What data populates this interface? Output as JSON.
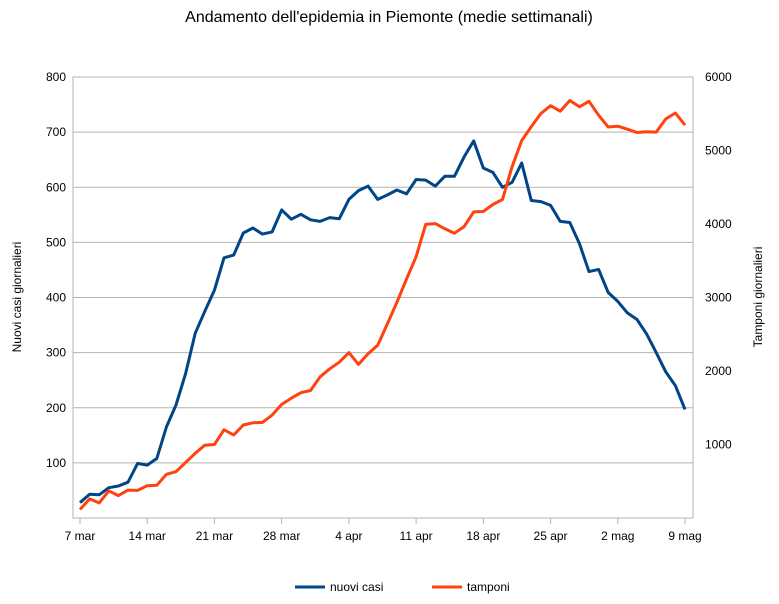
{
  "chart_data": {
    "type": "line",
    "title": "Andamento dell'epidemia in Piemonte (medie settimanali)",
    "ylabel": "Nuovi casi giornalieri",
    "y2label": "Tamponi giornalieri",
    "x_tick_labels": [
      "7 mar",
      "14 mar",
      "21 mar",
      "28 mar",
      "4 apr",
      "11 apr",
      "18 apr",
      "25 apr",
      "2 mag",
      "9 mag"
    ],
    "x_tick_days": [
      0,
      7,
      14,
      21,
      28,
      35,
      42,
      49,
      56,
      63
    ],
    "xlim": [
      0,
      63
    ],
    "ylim": [
      0,
      800
    ],
    "yticks": [
      100,
      200,
      300,
      400,
      500,
      600,
      700,
      800
    ],
    "y2lim": [
      0,
      6000
    ],
    "y2ticks": [
      1000,
      2000,
      3000,
      4000,
      5000,
      6000
    ],
    "grid": true,
    "legend": "bottom",
    "series": [
      {
        "name": "nuovi casi",
        "axis": "left",
        "color": "#004586",
        "values": [
          28,
          43,
          42,
          55,
          58,
          65,
          99,
          96,
          108,
          165,
          205,
          262,
          335,
          375,
          413,
          472,
          477,
          517,
          526,
          515,
          519,
          559,
          542,
          551,
          541,
          538,
          545,
          543,
          578,
          594,
          602,
          578,
          586,
          595,
          588,
          614,
          613,
          602,
          620,
          620,
          655,
          684,
          635,
          627,
          600,
          609,
          644,
          576,
          574,
          567,
          538,
          536,
          498,
          447,
          451,
          409,
          393,
          372,
          360,
          334,
          300,
          265,
          240,
          197
        ]
      },
      {
        "name": "tamponi",
        "axis": "right",
        "color": "#ff420e",
        "values": [
          115,
          260,
          205,
          370,
          305,
          380,
          375,
          440,
          445,
          595,
          630,
          755,
          880,
          990,
          1000,
          1200,
          1130,
          1265,
          1295,
          1300,
          1400,
          1545,
          1630,
          1705,
          1735,
          1920,
          2030,
          2120,
          2250,
          2090,
          2235,
          2350,
          2640,
          2935,
          3250,
          3555,
          3995,
          4005,
          3935,
          3875,
          3965,
          4165,
          4170,
          4265,
          4335,
          4780,
          5135,
          5325,
          5505,
          5610,
          5535,
          5680,
          5595,
          5670,
          5480,
          5320,
          5330,
          5290,
          5245,
          5255,
          5250,
          5430,
          5510,
          5345
        ]
      }
    ]
  }
}
